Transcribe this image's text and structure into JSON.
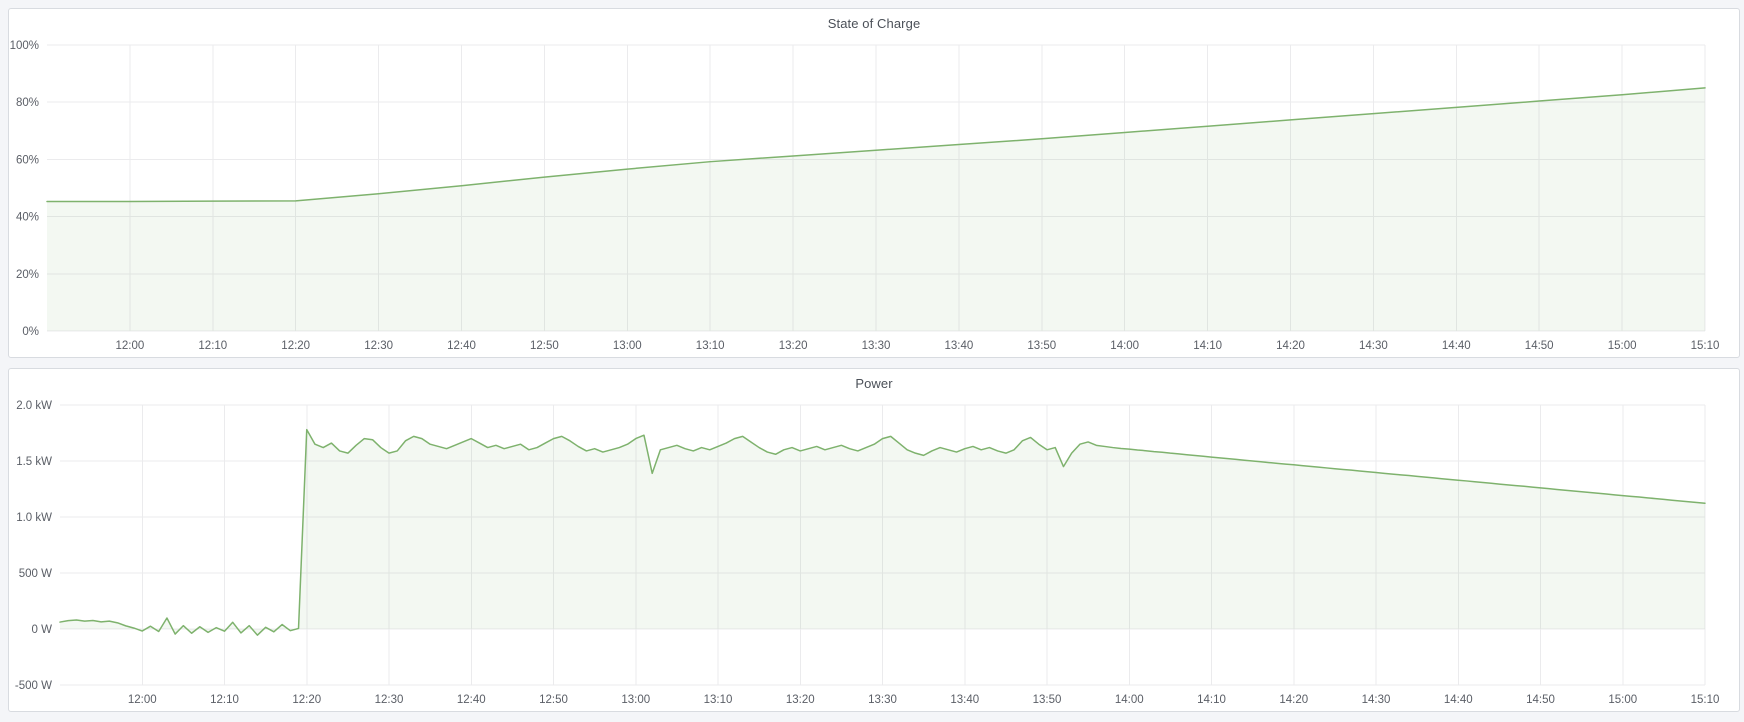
{
  "page": {
    "background": "#f4f5f8",
    "panel_background": "#ffffff",
    "panel_border": "#d8dbe0"
  },
  "panels": [
    {
      "title": "State of Charge"
    },
    {
      "title": "Power"
    }
  ],
  "chart_data": [
    {
      "id": "soc",
      "type": "area",
      "title": "State of Charge",
      "line_color": "#7eb26d",
      "fill_opacity": 0.09,
      "grid_color": "#ebebed",
      "tick_color": "#5a5e66",
      "grid": true,
      "legend": "none",
      "x_axis": {
        "label": "",
        "start_time": "11:50",
        "end_time": "15:10",
        "range_minutes": [
          0,
          200
        ],
        "tick_minutes": [
          10,
          20,
          30,
          40,
          50,
          60,
          70,
          80,
          90,
          100,
          110,
          120,
          130,
          140,
          150,
          160,
          170,
          180,
          190,
          200
        ],
        "tick_labels": [
          "12:00",
          "12:10",
          "12:20",
          "12:30",
          "12:40",
          "12:50",
          "13:00",
          "13:10",
          "13:20",
          "13:30",
          "13:40",
          "13:50",
          "14:00",
          "14:10",
          "14:20",
          "14:30",
          "14:40",
          "14:50",
          "15:00",
          "15:10"
        ]
      },
      "y_axis": {
        "label": "",
        "ylim": [
          0,
          100
        ],
        "tick_values": [
          0,
          20,
          40,
          60,
          80,
          100
        ],
        "tick_labels": [
          "0%",
          "20%",
          "40%",
          "60%",
          "80%",
          "100%"
        ]
      },
      "series": [
        {
          "name": "State of Charge",
          "unit": "%",
          "x_start": 0,
          "x_step": 10,
          "values": [
            45.3,
            45.3,
            45.4,
            45.5,
            48.0,
            50.8,
            53.8,
            56.6,
            59.2,
            61.2,
            63.2,
            65.2,
            67.2,
            69.4,
            71.6,
            73.8,
            76.0,
            78.2,
            80.4,
            82.6,
            85.0
          ]
        }
      ]
    },
    {
      "id": "power",
      "type": "area",
      "title": "Power",
      "line_color": "#7eb26d",
      "fill_opacity": 0.09,
      "grid_color": "#ebebed",
      "tick_color": "#5a5e66",
      "grid": true,
      "legend": "none",
      "x_axis": {
        "label": "",
        "start_time": "11:50",
        "end_time": "15:10",
        "range_minutes": [
          0,
          200
        ],
        "tick_minutes": [
          10,
          20,
          30,
          40,
          50,
          60,
          70,
          80,
          90,
          100,
          110,
          120,
          130,
          140,
          150,
          160,
          170,
          180,
          190,
          200
        ],
        "tick_labels": [
          "12:00",
          "12:10",
          "12:20",
          "12:30",
          "12:40",
          "12:50",
          "13:00",
          "13:10",
          "13:20",
          "13:30",
          "13:40",
          "13:50",
          "14:00",
          "14:10",
          "14:20",
          "14:30",
          "14:40",
          "14:50",
          "15:00",
          "15:10"
        ]
      },
      "y_axis": {
        "label": "",
        "ylim": [
          -500,
          2000
        ],
        "tick_values": [
          -500,
          0,
          500,
          1000,
          1500,
          2000
        ],
        "tick_labels": [
          "-500 W",
          "0 W",
          "500 W",
          "1.0 kW",
          "1.5 kW",
          "2.0 kW"
        ]
      },
      "series": [
        {
          "name": "Power",
          "unit": "W",
          "x_start": 0,
          "x_step": 1,
          "values": [
            62,
            75,
            80,
            70,
            76,
            64,
            70,
            55,
            28,
            8,
            -18,
            25,
            -22,
            98,
            -45,
            30,
            -38,
            20,
            -30,
            12,
            -20,
            60,
            -35,
            30,
            -55,
            15,
            -25,
            40,
            -15,
            5,
            1780,
            1650,
            1620,
            1660,
            1590,
            1570,
            1640,
            1700,
            1690,
            1620,
            1570,
            1590,
            1680,
            1720,
            1700,
            1650,
            1630,
            1610,
            1640,
            1670,
            1700,
            1660,
            1620,
            1640,
            1610,
            1630,
            1650,
            1600,
            1620,
            1660,
            1700,
            1720,
            1680,
            1630,
            1590,
            1610,
            1580,
            1600,
            1620,
            1650,
            1700,
            1730,
            1390,
            1600,
            1620,
            1640,
            1610,
            1590,
            1620,
            1600,
            1630,
            1660,
            1700,
            1720,
            1670,
            1620,
            1580,
            1560,
            1600,
            1620,
            1590,
            1610,
            1630,
            1600,
            1620,
            1640,
            1610,
            1590,
            1620,
            1650,
            1700,
            1720,
            1660,
            1600,
            1570,
            1550,
            1590,
            1620,
            1600,
            1580,
            1610,
            1630,
            1600,
            1620,
            1590,
            1570,
            1600,
            1680,
            1710,
            1650,
            1600,
            1620,
            1450,
            1570,
            1650,
            1670,
            1640,
            1630,
            1620,
            1612,
            1606,
            1598,
            1592,
            1584,
            1578,
            1570,
            1564,
            1556,
            1549,
            1542,
            1535,
            1528,
            1521,
            1514,
            1507,
            1500,
            1493,
            1486,
            1479,
            1472,
            1466,
            1459,
            1452,
            1445,
            1438,
            1431,
            1424,
            1418,
            1411,
            1404,
            1397,
            1390,
            1383,
            1376,
            1370,
            1363,
            1356,
            1349,
            1342,
            1335,
            1328,
            1322,
            1315,
            1308,
            1301,
            1294,
            1287,
            1280,
            1274,
            1267,
            1260,
            1253,
            1246,
            1239,
            1232,
            1226,
            1219,
            1212,
            1205,
            1198,
            1191,
            1184,
            1178,
            1171,
            1164,
            1157,
            1150,
            1143,
            1136,
            1130,
            1123
          ]
        }
      ]
    }
  ]
}
